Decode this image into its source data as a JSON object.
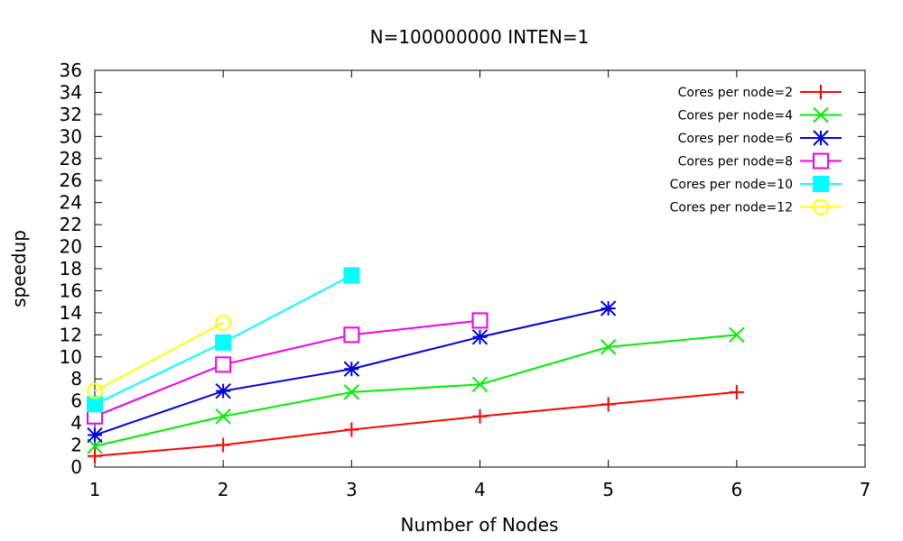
{
  "chart_data": {
    "type": "line",
    "title": "N=100000000 INTEN=1",
    "xlabel": "Number of Nodes",
    "ylabel": "speedup",
    "xlim": [
      1,
      7
    ],
    "ylim": [
      0,
      36
    ],
    "xticks": [
      1,
      2,
      3,
      4,
      5,
      6,
      7
    ],
    "yticks": [
      0,
      2,
      4,
      6,
      8,
      10,
      12,
      14,
      16,
      18,
      20,
      22,
      24,
      26,
      28,
      30,
      32,
      34,
      36
    ],
    "grid": false,
    "legend_position": "top-right",
    "series": [
      {
        "name": "Cores per node=2",
        "color": "#ff0000",
        "marker": "plus",
        "x": [
          1,
          2,
          3,
          4,
          5,
          6
        ],
        "y": [
          1.0,
          2.0,
          3.4,
          4.6,
          5.7,
          6.8
        ]
      },
      {
        "name": "Cores per node=4",
        "color": "#00ee00",
        "marker": "cross",
        "x": [
          1,
          2,
          3,
          4,
          5,
          6
        ],
        "y": [
          1.9,
          4.6,
          6.8,
          7.5,
          10.9,
          12.0
        ]
      },
      {
        "name": "Cores per node=6",
        "color": "#0000dd",
        "marker": "star",
        "x": [
          1,
          2,
          3,
          4,
          5
        ],
        "y": [
          2.9,
          6.9,
          8.9,
          11.8,
          14.4
        ]
      },
      {
        "name": "Cores per node=8",
        "color": "#ee00ee",
        "marker": "open-square",
        "x": [
          1,
          2,
          3,
          4
        ],
        "y": [
          4.6,
          9.3,
          12.0,
          13.3
        ]
      },
      {
        "name": "Cores per node=10",
        "color": "#00ffff",
        "marker": "filled-square",
        "x": [
          1,
          2,
          3
        ],
        "y": [
          5.7,
          11.3,
          17.4
        ]
      },
      {
        "name": "Cores per node=12",
        "color": "#ffff00",
        "marker": "open-circle",
        "x": [
          1,
          2
        ],
        "y": [
          6.9,
          13.1
        ]
      }
    ]
  }
}
